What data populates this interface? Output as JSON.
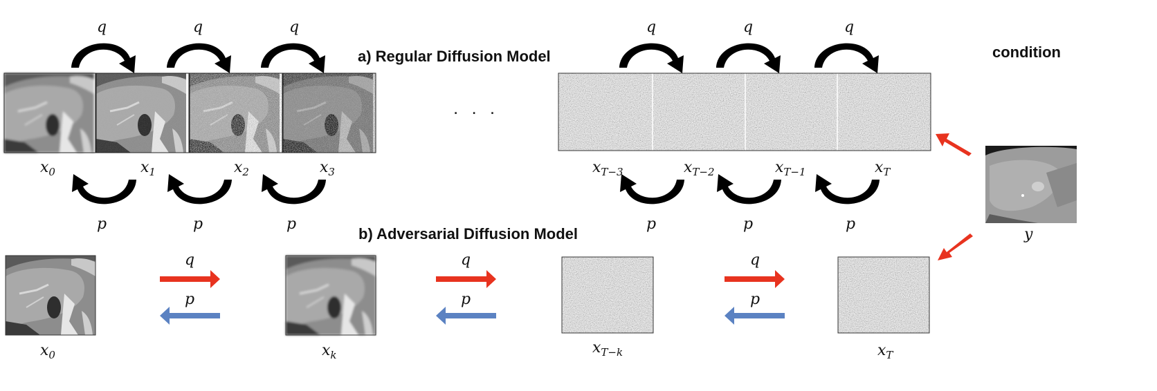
{
  "titles": {
    "regular": "a) Regular Diffusion Model",
    "adversarial": "b) Adversarial Diffusion Model",
    "condition": "condition"
  },
  "ellipsis": ". . .",
  "symbols": {
    "q": "q",
    "p": "p",
    "y": "y"
  },
  "regular_labels": [
    {
      "base": "x",
      "sub": "0"
    },
    {
      "base": "x",
      "sub": "1"
    },
    {
      "base": "x",
      "sub": "2"
    },
    {
      "base": "x",
      "sub": "3"
    },
    {
      "base": "x",
      "sub": "T−3"
    },
    {
      "base": "x",
      "sub": "T−2"
    },
    {
      "base": "x",
      "sub": "T−1"
    },
    {
      "base": "x",
      "sub": "T"
    }
  ],
  "adversarial_labels": [
    {
      "base": "x",
      "sub": "0"
    },
    {
      "base": "x",
      "sub": "k"
    },
    {
      "base": "x",
      "sub": "T−k"
    },
    {
      "base": "x",
      "sub": "T"
    }
  ],
  "colors": {
    "forward_arrow": "#e8331f",
    "reverse_arrow": "#5b82c2",
    "condition_arrow": "#e8331f",
    "curved_arrow": "#000000"
  },
  "image_types": [
    "liver-mri-clean",
    "liver-mri-noisy-1",
    "liver-mri-noisy-2",
    "liver-mri-noisy-3",
    "gaussian-noise",
    "liver-ct-condition"
  ]
}
